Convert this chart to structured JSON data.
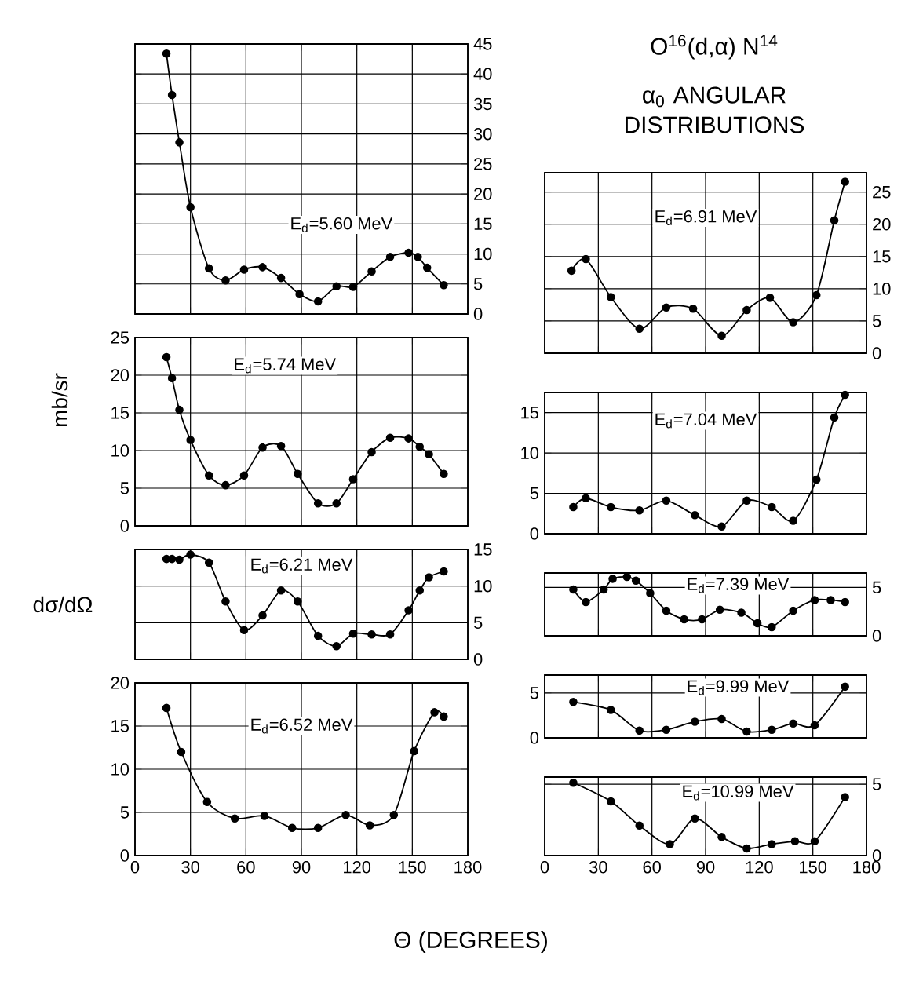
{
  "chart_data": [
    {
      "type": "line",
      "annotations": [
        "E$_{d}$=5.60 MeV"
      ],
      "x": [
        17,
        20,
        24,
        30,
        40,
        49,
        59,
        69,
        79,
        89,
        99,
        109,
        118,
        128,
        138,
        148,
        153,
        158,
        167
      ],
      "values": [
        43.4,
        36.5,
        28.6,
        17.8,
        7.6,
        5.6,
        7.4,
        7.8,
        6.0,
        3.3,
        2.1,
        4.6,
        4.5,
        7.1,
        9.5,
        10.2,
        9.5,
        7.7,
        4.8
      ],
      "color": "#000000",
      "marker": "circle",
      "xlim": [
        0,
        180
      ],
      "xticks": [
        0,
        30,
        60,
        90,
        120,
        150,
        180
      ],
      "ylim": [
        0,
        45
      ],
      "yticks": [
        0,
        5,
        10,
        15,
        20,
        25,
        30,
        35,
        40,
        45
      ],
      "grid": true,
      "tick_labels": "y"
    },
    {
      "type": "line",
      "ylabel": "mb/sr",
      "annotations": [
        "E$_{d}$=5.74 MeV"
      ],
      "x": [
        17,
        20,
        24,
        30,
        40,
        49,
        59,
        69,
        79,
        88,
        99,
        109,
        118,
        128,
        138,
        148,
        154,
        159,
        167
      ],
      "values": [
        22.4,
        19.6,
        15.4,
        11.4,
        6.7,
        5.4,
        6.7,
        10.4,
        10.6,
        6.9,
        3.0,
        3.0,
        6.2,
        9.8,
        11.7,
        11.6,
        10.5,
        9.5,
        6.9
      ],
      "color": "#000000",
      "marker": "circle",
      "xlim": [
        0,
        180
      ],
      "xticks": [
        0,
        30,
        60,
        90,
        120,
        150,
        180
      ],
      "ylim": [
        0,
        25
      ],
      "yticks": [
        0,
        5,
        10,
        15,
        20,
        25
      ],
      "grid": true,
      "tick_labels": "y"
    },
    {
      "type": "line",
      "ylabel": "dσ/dΩ",
      "annotations": [
        "E$_{d}$=6.21 MeV"
      ],
      "x": [
        17,
        20,
        24,
        30,
        40,
        49,
        59,
        69,
        79,
        88,
        99,
        109,
        118,
        128,
        138,
        148,
        154,
        159,
        167
      ],
      "values": [
        13.7,
        13.7,
        13.6,
        14.3,
        13.2,
        7.9,
        4.0,
        6.0,
        9.4,
        7.9,
        3.2,
        1.8,
        3.5,
        3.4,
        3.4,
        6.7,
        9.4,
        11.2,
        12.0
      ],
      "color": "#000000",
      "marker": "circle",
      "xlim": [
        0,
        180
      ],
      "xticks": [
        0,
        30,
        60,
        90,
        120,
        150,
        180
      ],
      "ylim": [
        0,
        15
      ],
      "yticks": [
        0,
        5,
        10,
        15
      ],
      "grid": true,
      "tick_labels": "y"
    },
    {
      "type": "line",
      "xlabel": "Θ (DEGREES)",
      "annotations": [
        "E$_{d}$=6.52 MeV"
      ],
      "x": [
        17,
        25,
        39,
        54,
        70,
        85,
        99,
        114,
        127,
        140,
        151,
        162,
        167
      ],
      "values": [
        17.1,
        12.0,
        6.2,
        4.3,
        4.6,
        3.2,
        3.2,
        4.7,
        3.5,
        4.7,
        12.1,
        16.6,
        16.1
      ],
      "color": "#000000",
      "marker": "circle",
      "xlim": [
        0,
        180
      ],
      "xticks": [
        0,
        30,
        60,
        90,
        120,
        150,
        180
      ],
      "ylim": [
        0,
        20
      ],
      "yticks": [
        0,
        5,
        10,
        15,
        20
      ],
      "grid": true
    },
    {
      "type": "line",
      "title": "O$^{16}$(d,α) N$^{14}$",
      "subtitle": "α$_{0}$ ANGULAR DISTRIBUTIONS",
      "annotations": [
        "E$_{d}$=6.91 MeV"
      ],
      "x": [
        15,
        23,
        37,
        53,
        68,
        83,
        99,
        113,
        126,
        139,
        152,
        162,
        168
      ],
      "values": [
        12.8,
        14.6,
        8.7,
        3.8,
        7.1,
        6.9,
        2.7,
        6.7,
        8.6,
        4.8,
        9.0,
        20.6,
        26.6
      ],
      "color": "#000000",
      "marker": "circle",
      "xlim": [
        0,
        180
      ],
      "xticks": [
        0,
        30,
        60,
        90,
        120,
        150,
        180
      ],
      "ylim": [
        0,
        28
      ],
      "yticks": [
        0,
        5,
        10,
        15,
        20,
        25
      ],
      "grid": true,
      "tick_labels": "y"
    },
    {
      "type": "line",
      "annotations": [
        "E$_{d}$=7.04 MeV"
      ],
      "x": [
        16,
        23,
        37,
        53,
        68,
        84,
        99,
        113,
        127,
        139,
        152,
        162,
        168
      ],
      "values": [
        3.3,
        4.4,
        3.3,
        2.9,
        4.1,
        2.3,
        0.9,
        4.1,
        3.3,
        1.6,
        6.7,
        14.4,
        17.2
      ],
      "color": "#000000",
      "marker": "circle",
      "xlim": [
        0,
        180
      ],
      "xticks": [
        0,
        30,
        60,
        90,
        120,
        150,
        180
      ],
      "ylim": [
        0,
        17.5
      ],
      "yticks": [
        0,
        5,
        10,
        15
      ],
      "grid": true,
      "tick_labels": "y"
    },
    {
      "type": "line",
      "annotations": [
        "E$_{d}$=7.39 MeV"
      ],
      "x": [
        16,
        23,
        33,
        38,
        46,
        51,
        59,
        68,
        78,
        88,
        98,
        110,
        119,
        127,
        139,
        151,
        160,
        168
      ],
      "values": [
        4.8,
        3.5,
        4.8,
        5.9,
        6.1,
        5.7,
        4.4,
        2.6,
        1.7,
        1.7,
        2.7,
        2.4,
        1.3,
        0.9,
        2.6,
        3.7,
        3.7,
        3.5
      ],
      "color": "#000000",
      "marker": "circle",
      "xlim": [
        0,
        180
      ],
      "xticks": [
        0,
        30,
        60,
        90,
        120,
        150,
        180
      ],
      "ylim": [
        0,
        6.5
      ],
      "yticks": [
        0,
        5
      ],
      "grid": true,
      "tick_labels": "y"
    },
    {
      "type": "line",
      "annotations": [
        "E$_{d}$=9.99 MeV"
      ],
      "x": [
        16,
        37,
        53,
        68,
        84,
        99,
        113,
        127,
        139,
        151,
        168
      ],
      "values": [
        4.0,
        3.1,
        0.8,
        0.9,
        1.8,
        2.1,
        0.7,
        0.9,
        1.6,
        1.4,
        5.7
      ],
      "color": "#000000",
      "marker": "circle",
      "xlim": [
        0,
        180
      ],
      "xticks": [
        0,
        30,
        60,
        90,
        120,
        150,
        180
      ],
      "ylim": [
        0,
        7
      ],
      "yticks": [
        0,
        5
      ],
      "grid": true,
      "tick_labels": "y"
    },
    {
      "type": "line",
      "annotations": [
        "E$_{d}$=10.99 MeV"
      ],
      "x": [
        16,
        37,
        53,
        70,
        84,
        99,
        113,
        127,
        140,
        151,
        168
      ],
      "values": [
        5.1,
        3.8,
        2.1,
        0.8,
        2.6,
        1.3,
        0.5,
        0.8,
        1.0,
        1.0,
        4.1
      ],
      "color": "#000000",
      "marker": "circle",
      "xlim": [
        0,
        180
      ],
      "xticks": [
        0,
        30,
        60,
        90,
        120,
        150,
        180
      ],
      "ylim": [
        0,
        5.5
      ],
      "yticks": [
        0,
        5
      ],
      "grid": true
    }
  ]
}
